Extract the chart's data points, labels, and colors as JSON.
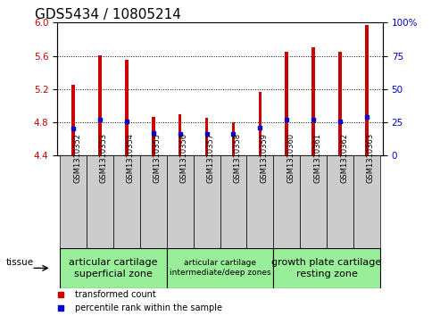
{
  "title": "GDS5434 / 10805214",
  "samples": [
    "GSM1310352",
    "GSM1310353",
    "GSM1310354",
    "GSM1310355",
    "GSM1310356",
    "GSM1310357",
    "GSM1310358",
    "GSM1310359",
    "GSM1310360",
    "GSM1310361",
    "GSM1310362",
    "GSM1310363"
  ],
  "transformed_counts": [
    5.25,
    5.61,
    5.55,
    4.87,
    4.9,
    4.85,
    4.8,
    5.17,
    5.65,
    5.7,
    5.65,
    5.97
  ],
  "percentile_ranks": [
    20,
    27,
    26,
    17,
    16,
    16,
    16,
    21,
    27,
    27,
    26,
    29
  ],
  "ylim_left": [
    4.4,
    6.0
  ],
  "ylim_right": [
    0,
    100
  ],
  "yticks_left": [
    4.4,
    4.8,
    5.2,
    5.6,
    6.0
  ],
  "yticks_right": [
    0,
    25,
    50,
    75,
    100
  ],
  "bar_color": "#cc0000",
  "percentile_color": "#0000cc",
  "bar_width": 0.12,
  "grid_color": "black",
  "tissue_groups": [
    {
      "label": "articular cartilage\nsuperficial zone",
      "start": 0,
      "end": 3,
      "color": "#99ee99",
      "fontsize": 8
    },
    {
      "label": "articular cartilage\nintermediate/deep zones",
      "start": 4,
      "end": 7,
      "color": "#99ee99",
      "fontsize": 6.5
    },
    {
      "label": "growth plate cartilage\nresting zone",
      "start": 8,
      "end": 11,
      "color": "#99ee99",
      "fontsize": 8
    }
  ],
  "legend_items": [
    {
      "label": "transformed count",
      "color": "#cc0000"
    },
    {
      "label": "percentile rank within the sample",
      "color": "#0000cc"
    }
  ],
  "tissue_label": "tissue",
  "xticklabel_fontsize": 6,
  "title_fontsize": 11,
  "yticklabel_left_color": "#cc0000",
  "yticklabel_right_color": "#0000cc",
  "background_color": "#ffffff",
  "plot_bg_color": "#ffffff",
  "xtick_bg_color": "#cccccc",
  "base_value": 4.4
}
